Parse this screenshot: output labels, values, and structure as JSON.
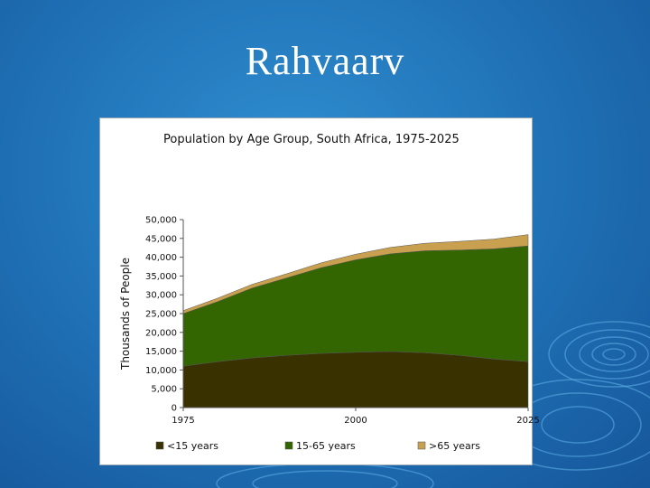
{
  "slide": {
    "title": "Rahvaarv"
  },
  "chart_data": {
    "type": "area",
    "stacked": true,
    "title": "Population by Age Group, South Africa, 1975-2025",
    "ylabel": "Thousands of People",
    "xlabel": "",
    "x": [
      1975,
      1980,
      1985,
      1990,
      1995,
      2000,
      2005,
      2010,
      2015,
      2020,
      2025
    ],
    "x_ticks": [
      "1975",
      "2000",
      "2025"
    ],
    "y_ticks": [
      "0",
      "5,000",
      "10,000",
      "15,000",
      "20,000",
      "25,000",
      "30,000",
      "35,000",
      "40,000",
      "45,000",
      "50,000"
    ],
    "ylim": [
      0,
      50000
    ],
    "legend_position": "bottom",
    "grid": false,
    "series": [
      {
        "name": "<15 years",
        "color": "#3a3100",
        "values": [
          11000,
          12200,
          13200,
          13900,
          14400,
          14700,
          14900,
          14600,
          13900,
          12900,
          12200
        ]
      },
      {
        "name": "15-65 years",
        "color": "#336600",
        "values": [
          14000,
          16000,
          18600,
          20600,
          22800,
          24600,
          26000,
          27100,
          28000,
          29300,
          30800
        ]
      },
      {
        "name": ">65 years",
        "color": "#c8a050",
        "values": [
          800,
          900,
          1000,
          1100,
          1300,
          1500,
          1700,
          2000,
          2300,
          2600,
          3000
        ]
      }
    ]
  }
}
